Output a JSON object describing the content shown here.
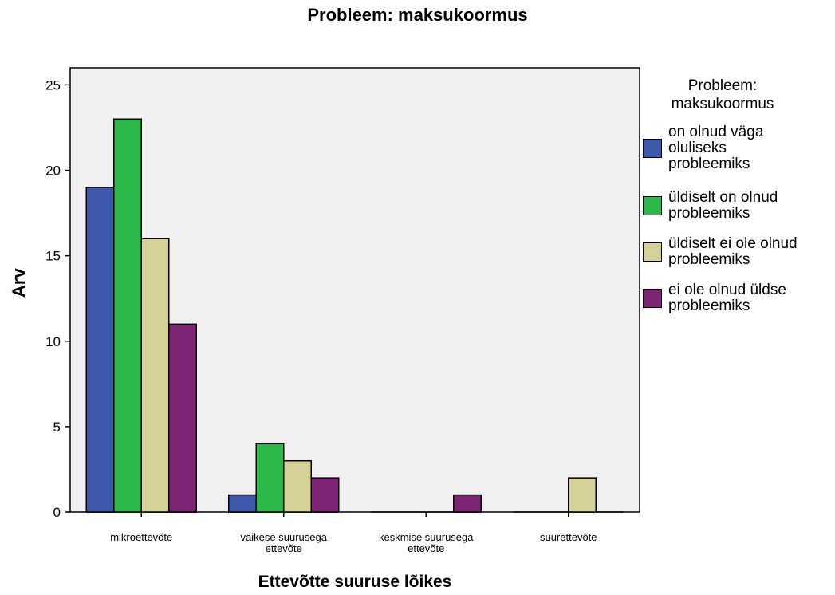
{
  "chart_data": {
    "type": "bar",
    "title": "Probleem: maksukoormus",
    "xlabel": "Ettevõtte suuruse lõikes",
    "ylabel": "Arv",
    "ylim": [
      0,
      26
    ],
    "yticks": [
      0,
      5,
      10,
      15,
      20,
      25
    ],
    "grid": false,
    "legend_title": "Probleem:\nmaksukoormus",
    "legend_placement": "right",
    "categories": [
      "mikroettevõte",
      "väikese suurusega ettevõte",
      "keskmise suurusega ettevõte",
      "suurettevõte"
    ],
    "category_labels": [
      [
        "mikroettevõte"
      ],
      [
        "väikese suurusega",
        "ettevõte"
      ],
      [
        "keskmise suurusega",
        "ettevõte"
      ],
      [
        "suurettevõte"
      ]
    ],
    "series": [
      {
        "name": "on olnud väga oluliseks probleemiks",
        "name_lines": [
          "on olnud väga",
          "oluliseks",
          "probleemiks"
        ],
        "color": "#3e58ac",
        "values": [
          19,
          1,
          0,
          0
        ]
      },
      {
        "name": "üldiselt on olnud probleemiks",
        "name_lines": [
          "üldiselt on olnud",
          "probleemiks"
        ],
        "color": "#2db84a",
        "values": [
          23,
          4,
          0,
          0
        ]
      },
      {
        "name": "üldiselt ei ole olnud probleemiks",
        "name_lines": [
          "üldiselt ei ole olnud",
          "probleemiks"
        ],
        "color": "#d6d099",
        "values": [
          16,
          3,
          0,
          2
        ]
      },
      {
        "name": "ei ole olnud üldse probleemiks",
        "name_lines": [
          "ei ole olnud üldse",
          "probleemiks"
        ],
        "color": "#7e2474",
        "values": [
          11,
          2,
          1,
          0
        ]
      }
    ]
  }
}
